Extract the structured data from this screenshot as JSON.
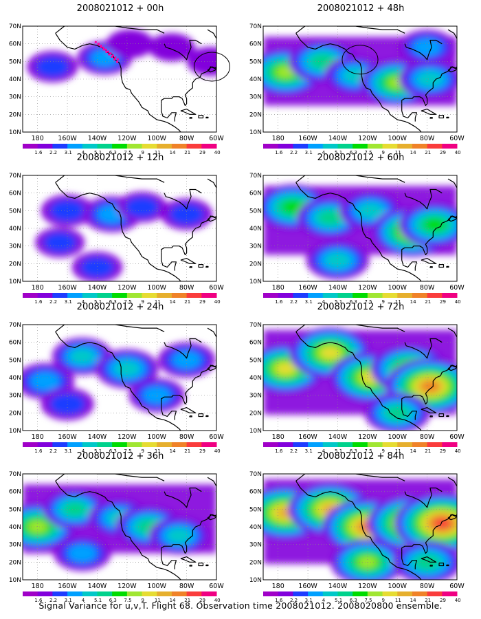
{
  "footer": "Signal Variance for u,v,T. Flight 68. Observation time 2008021012. 2008020800 ensemble.",
  "chart_data": [
    {
      "type": "heatmap",
      "title": "2008021012 + 00h",
      "intensity": 0.28,
      "xticks": [
        "180",
        "160W",
        "140W",
        "120W",
        "100W",
        "80W",
        "60W"
      ],
      "yticks": [
        "10N",
        "20N",
        "30N",
        "40N",
        "50N",
        "60N",
        "70N"
      ],
      "colorbar": [
        "1.6",
        "2.2",
        "3.1",
        "4",
        "5.1",
        "6.3",
        "7.5",
        "9",
        "11",
        "14",
        "21",
        "29",
        "40"
      ],
      "markers": [
        {
          "type": "ellipse",
          "lon": -63,
          "lat": 47
        },
        {
          "type": "dotted-path",
          "lon": -135,
          "lat": 55
        }
      ]
    },
    {
      "type": "heatmap",
      "title": "2008021012 + 48h",
      "intensity": 0.62,
      "xticks": [
        "180",
        "160W",
        "140W",
        "120W",
        "100W",
        "80W",
        "60W"
      ],
      "yticks": [
        "10N",
        "20N",
        "30N",
        "40N",
        "50N",
        "60N",
        "70N"
      ],
      "colorbar": [
        "1.6",
        "2.2",
        "3.1",
        "4",
        "5.1",
        "6.3",
        "7.5",
        "9",
        "11",
        "14",
        "21",
        "29",
        "40"
      ],
      "markers": [
        {
          "type": "ellipse",
          "lon": -125,
          "lat": 51
        }
      ]
    },
    {
      "type": "heatmap",
      "title": "2008021012 + 12h",
      "intensity": 0.36,
      "xticks": [
        "180",
        "160W",
        "140W",
        "120W",
        "100W",
        "80W",
        "60W"
      ],
      "yticks": [
        "10N",
        "20N",
        "30N",
        "40N",
        "50N",
        "60N",
        "70N"
      ],
      "colorbar": [
        "1.6",
        "2.2",
        "3.1",
        "4",
        "5.1",
        "6.3",
        "7.5",
        "9",
        "11",
        "14",
        "21",
        "29",
        "40"
      ],
      "markers": []
    },
    {
      "type": "heatmap",
      "title": "2008021012 + 60h",
      "intensity": 0.68,
      "xticks": [
        "180",
        "160W",
        "140W",
        "120W",
        "100W",
        "80W",
        "60W"
      ],
      "yticks": [
        "10N",
        "20N",
        "30N",
        "40N",
        "50N",
        "60N",
        "70N"
      ],
      "colorbar": [
        "1.6",
        "2.2",
        "3.1",
        "4",
        "5.1",
        "6.3",
        "7.5",
        "9",
        "11",
        "14",
        "21",
        "29",
        "40"
      ],
      "markers": []
    },
    {
      "type": "heatmap",
      "title": "2008021012 + 24h",
      "intensity": 0.46,
      "xticks": [
        "180",
        "160W",
        "140W",
        "120W",
        "100W",
        "80W",
        "60W"
      ],
      "yticks": [
        "10N",
        "20N",
        "30N",
        "40N",
        "50N",
        "60N",
        "70N"
      ],
      "colorbar": [
        "1.6",
        "2.2",
        "3.1",
        "4",
        "5.1",
        "6.3",
        "7.5",
        "9",
        "11",
        "14",
        "21",
        "29",
        "40"
      ],
      "markers": []
    },
    {
      "type": "heatmap",
      "title": "2008021012 + 72h",
      "intensity": 0.76,
      "xticks": [
        "180",
        "160W",
        "140W",
        "120W",
        "100W",
        "80W",
        "60W"
      ],
      "yticks": [
        "10N",
        "20N",
        "30N",
        "40N",
        "50N",
        "60N",
        "70N"
      ],
      "colorbar": [
        "1.6",
        "2.2",
        "3.1",
        "4",
        "5.1",
        "6.3",
        "7.5",
        "9",
        "11",
        "14",
        "21",
        "29",
        "40"
      ],
      "markers": []
    },
    {
      "type": "heatmap",
      "title": "2008021012 + 36h",
      "intensity": 0.56,
      "xticks": [
        "180",
        "160W",
        "140W",
        "120W",
        "100W",
        "80W",
        "60W"
      ],
      "yticks": [
        "10N",
        "20N",
        "30N",
        "40N",
        "50N",
        "60N",
        "70N"
      ],
      "colorbar": [
        "1.6",
        "2.2",
        "3.1",
        "4",
        "5.1",
        "6.3",
        "7.5",
        "9",
        "11",
        "14",
        "21",
        "29",
        "40"
      ],
      "markers": []
    },
    {
      "type": "heatmap",
      "title": "2008021012 + 84h",
      "intensity": 0.86,
      "xticks": [
        "180",
        "160W",
        "140W",
        "120W",
        "100W",
        "80W",
        "60W"
      ],
      "yticks": [
        "10N",
        "20N",
        "30N",
        "40N",
        "50N",
        "60N",
        "70N"
      ],
      "colorbar": [
        "1.6",
        "2.2",
        "3.1",
        "4",
        "5.1",
        "6.3",
        "7.5",
        "9",
        "11",
        "14",
        "21",
        "29",
        "40"
      ],
      "markers": []
    }
  ],
  "colors": [
    "#a000c8",
    "#8200dc",
    "#1e3cff",
    "#00a0ff",
    "#00c8c8",
    "#00d28c",
    "#00dc00",
    "#a0e632",
    "#e6dc32",
    "#e6af2d",
    "#f08228",
    "#fa3c3c",
    "#f00082"
  ]
}
